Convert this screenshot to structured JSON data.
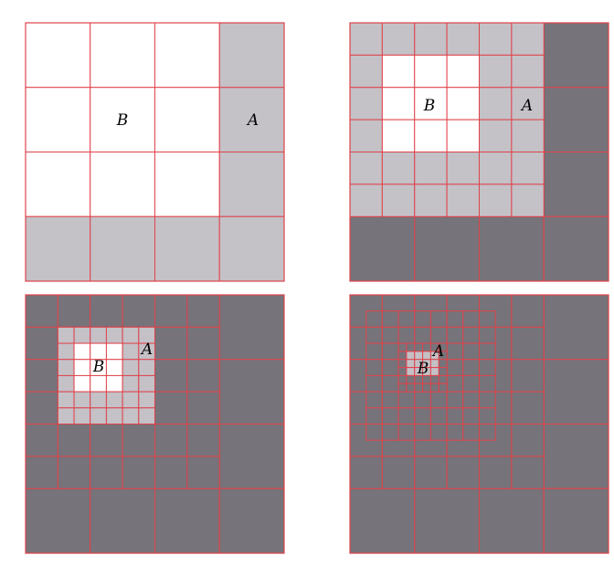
{
  "colors": {
    "white": "#ffffff",
    "light": "#c4c1c7",
    "dark": "#77737a",
    "grid_line": "#e0424a"
  },
  "panels": [
    {
      "label_b": "B",
      "label_a": "A"
    },
    {
      "label_b": "B",
      "label_a": "A"
    },
    {
      "label_b": "B",
      "label_a": "A"
    },
    {
      "label_b": "B",
      "label_a": "A"
    }
  ]
}
